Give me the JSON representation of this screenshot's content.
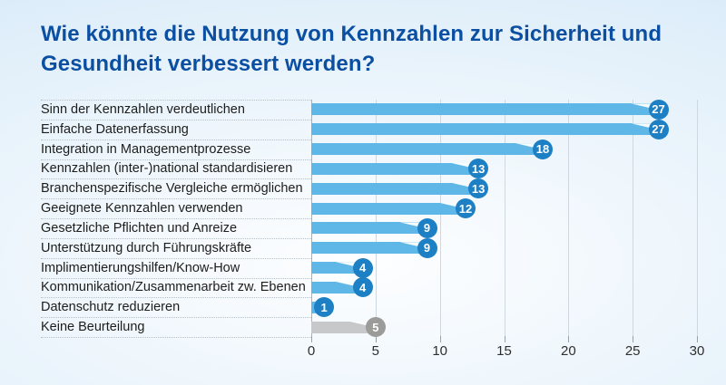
{
  "page": {
    "title": "Wie könnte die Nutzung von Kennzahlen zur Sicherheit und Gesundheit verbessert werden?"
  },
  "colors": {
    "title": "#0b4fa3",
    "bar": "#5fb7e8",
    "badge": "#1d7fc4",
    "bar_muted": "#c7c8c9",
    "badge_muted": "#9b9b99",
    "label": "#1d1d1b",
    "grid": "#cfd8de",
    "axis": "#a8b2b9"
  },
  "chart_data": {
    "type": "bar",
    "orientation": "horizontal",
    "title": "Wie könnte die Nutzung von Kennzahlen zur Sicherheit und Gesundheit verbessert werden?",
    "categories": [
      "Sinn der Kennzahlen verdeutlichen",
      "Einfache Datenerfassung",
      "Integration in Managementprozesse",
      "Kennzahlen (inter-)national standardisieren",
      "Branchenspezifische Vergleiche ermöglichen",
      "Geeignete Kennzahlen verwenden",
      "Gesetzliche Pflichten und Anreize",
      "Unterstützung durch Führungskräfte",
      "Implimentierungshilfen/Know-How",
      "Kommunikation/Zusammenarbeit zw. Ebenen",
      "Datenschutz reduzieren",
      "Keine Beurteilung"
    ],
    "values": [
      27,
      27,
      18,
      13,
      13,
      12,
      9,
      9,
      4,
      4,
      1,
      5
    ],
    "muted": [
      false,
      false,
      false,
      false,
      false,
      false,
      false,
      false,
      false,
      false,
      false,
      true
    ],
    "xlim": [
      0,
      30
    ],
    "xticks": [
      0,
      5,
      10,
      15,
      20,
      25,
      30
    ],
    "xlabel": "",
    "ylabel": "",
    "grid": "vertical",
    "legend": "none",
    "value_labels": "circular badges at bar ends"
  }
}
